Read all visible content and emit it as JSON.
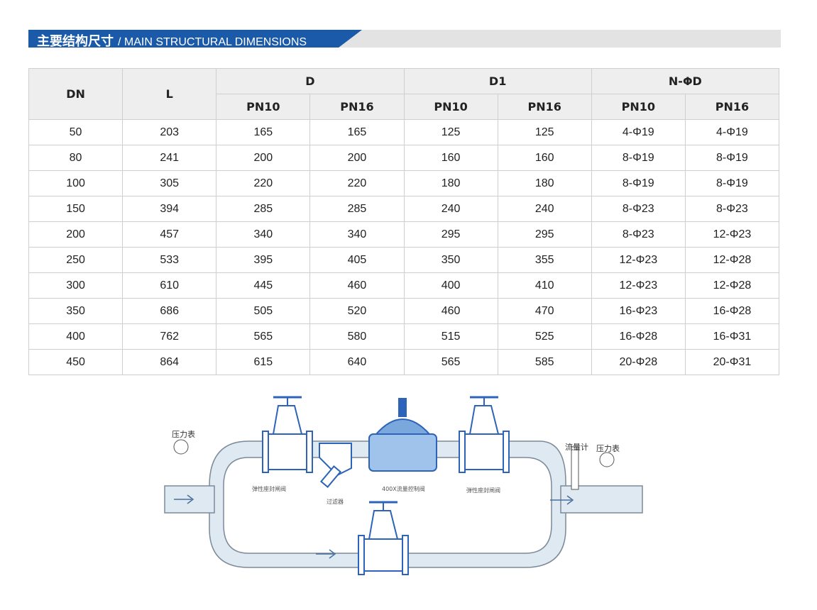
{
  "header": {
    "title_cn": "主要结构尺寸",
    "title_en": "/ MAIN STRUCTURAL DIMENSIONS",
    "color": "#1a5aa8"
  },
  "table": {
    "headers": {
      "dn": "DN",
      "l": "L",
      "d": "D",
      "d1": "D1",
      "nphid": "N-ΦD",
      "pn10": "PN10",
      "pn16": "PN16"
    },
    "rows": [
      [
        "50",
        "203",
        "165",
        "165",
        "125",
        "125",
        "4-Φ19",
        "4-Φ19"
      ],
      [
        "80",
        "241",
        "200",
        "200",
        "160",
        "160",
        "8-Φ19",
        "8-Φ19"
      ],
      [
        "100",
        "305",
        "220",
        "220",
        "180",
        "180",
        "8-Φ19",
        "8-Φ19"
      ],
      [
        "150",
        "394",
        "285",
        "285",
        "240",
        "240",
        "8-Φ23",
        "8-Φ23"
      ],
      [
        "200",
        "457",
        "340",
        "340",
        "295",
        "295",
        "8-Φ23",
        "12-Φ23"
      ],
      [
        "250",
        "533",
        "395",
        "405",
        "350",
        "355",
        "12-Φ23",
        "12-Φ28"
      ],
      [
        "300",
        "610",
        "445",
        "460",
        "400",
        "410",
        "12-Φ23",
        "12-Φ28"
      ],
      [
        "350",
        "686",
        "505",
        "520",
        "460",
        "470",
        "16-Φ23",
        "16-Φ28"
      ],
      [
        "400",
        "762",
        "565",
        "580",
        "515",
        "525",
        "16-Φ28",
        "16-Φ31"
      ],
      [
        "450",
        "864",
        "615",
        "640",
        "565",
        "585",
        "20-Φ28",
        "20-Φ31"
      ]
    ]
  },
  "diagram": {
    "pressure_gauge_left": "压力表",
    "flow_meter": "流量计",
    "pressure_gauge_right": "压力表",
    "gate_valve_left": "弹性座封闸阀",
    "control_valve": "400X流量控制阀",
    "gate_valve_right": "弹性座封闸阀",
    "filter": "过滤器",
    "valve_color": "#2d63b8",
    "pipe_color": "#dfe9f2"
  }
}
